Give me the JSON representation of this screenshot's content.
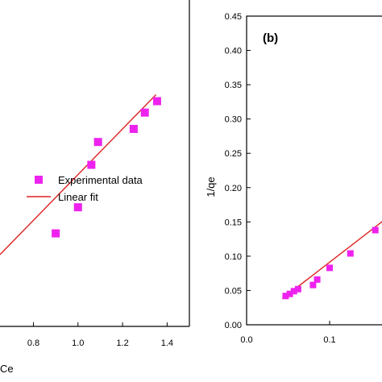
{
  "chart_data": [
    {
      "type": "scatter",
      "panel_label": "",
      "xlabel": "Ce",
      "ylabel": "",
      "xlim": [
        0.65,
        1.5
      ],
      "ylim": [
        0,
        1
      ],
      "x_ticks": [
        "0.8",
        "1.0",
        "1.2",
        "1.4"
      ],
      "x_tick_values": [
        0.8,
        1.0,
        1.2,
        1.4
      ],
      "series": [
        {
          "name": "Experimental data",
          "marker": "square",
          "color": "#ee22ee",
          "points": [
            {
              "x": 0.9,
              "y": 0.285
            },
            {
              "x": 1.0,
              "y": 0.365
            },
            {
              "x": 1.06,
              "y": 0.495
            },
            {
              "x": 1.09,
              "y": 0.565
            },
            {
              "x": 1.25,
              "y": 0.605
            },
            {
              "x": 1.3,
              "y": 0.655
            },
            {
              "x": 1.355,
              "y": 0.69
            }
          ]
        },
        {
          "name": "Linear fit",
          "marker": "line",
          "color": "#dd2222",
          "points": [
            {
              "x": 0.65,
              "y": 0.22
            },
            {
              "x": 1.35,
              "y": 0.71
            }
          ]
        }
      ],
      "legend": {
        "position": "middle-left",
        "entries": [
          "Experimental data",
          "Linear fit"
        ]
      }
    },
    {
      "type": "scatter",
      "panel_label": "(b)",
      "xlabel": "",
      "ylabel": "1/qe",
      "xlim": [
        0.0,
        0.165
      ],
      "ylim": [
        0.0,
        0.45
      ],
      "x_ticks": [
        "0.0",
        "0.1"
      ],
      "x_tick_values": [
        0.0,
        0.1
      ],
      "y_ticks": [
        "0.00",
        "0.05",
        "0.10",
        "0.15",
        "0.20",
        "0.25",
        "0.30",
        "0.35",
        "0.40",
        "0.45"
      ],
      "y_tick_values": [
        0.0,
        0.05,
        0.1,
        0.15,
        0.2,
        0.25,
        0.3,
        0.35,
        0.4,
        0.45
      ],
      "series": [
        {
          "name": "Experimental data",
          "marker": "square",
          "color": "#ee22ee",
          "points": [
            {
              "x": 0.047,
              "y": 0.042
            },
            {
              "x": 0.052,
              "y": 0.045
            },
            {
              "x": 0.057,
              "y": 0.049
            },
            {
              "x": 0.062,
              "y": 0.052
            },
            {
              "x": 0.08,
              "y": 0.058
            },
            {
              "x": 0.085,
              "y": 0.066
            },
            {
              "x": 0.1,
              "y": 0.083
            },
            {
              "x": 0.125,
              "y": 0.104
            },
            {
              "x": 0.155,
              "y": 0.138
            }
          ]
        },
        {
          "name": "Linear fit",
          "marker": "line",
          "color": "#dd2222",
          "points": [
            {
              "x": 0.043,
              "y": 0.038
            },
            {
              "x": 0.165,
              "y": 0.152
            }
          ]
        }
      ]
    }
  ]
}
